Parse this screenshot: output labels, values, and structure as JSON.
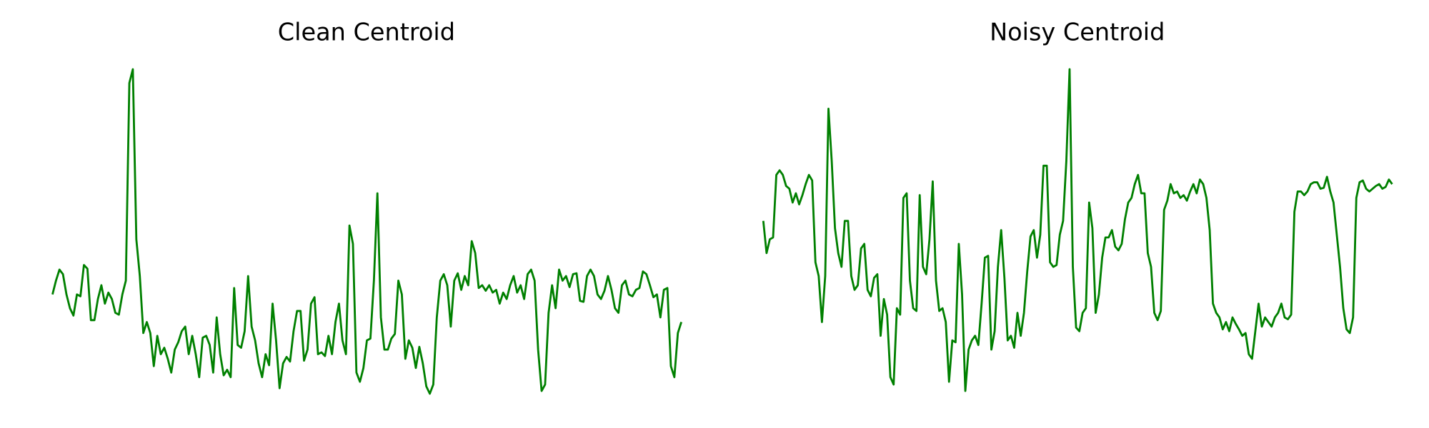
{
  "chart_data": [
    {
      "type": "line",
      "title": "Clean Centroid",
      "color": "#008000",
      "ylim": [
        0,
        355
      ],
      "values": [
        110,
        125,
        137,
        132,
        110,
        95,
        87,
        110,
        108,
        142,
        138,
        82,
        82,
        105,
        120,
        100,
        112,
        105,
        90,
        88,
        110,
        125,
        340,
        355,
        170,
        130,
        68,
        80,
        68,
        32,
        65,
        45,
        52,
        40,
        25,
        50,
        58,
        70,
        75,
        45,
        65,
        45,
        20,
        63,
        65,
        55,
        25,
        85,
        45,
        22,
        28,
        20,
        117,
        55,
        52,
        70,
        130,
        75,
        60,
        35,
        20,
        45,
        33,
        100,
        60,
        8,
        35,
        42,
        37,
        70,
        92,
        92,
        38,
        50,
        100,
        107,
        45,
        47,
        43,
        65,
        45,
        80,
        100,
        60,
        45,
        185,
        165,
        25,
        15,
        30,
        60,
        62,
        125,
        220,
        85,
        50,
        50,
        62,
        67,
        125,
        110,
        40,
        60,
        52,
        30,
        53,
        35,
        10,
        2,
        12,
        85,
        125,
        132,
        120,
        75,
        125,
        133,
        115,
        130,
        120,
        168,
        155,
        117,
        120,
        114,
        120,
        112,
        115,
        100,
        112,
        105,
        120,
        130,
        112,
        120,
        105,
        132,
        137,
        125,
        50,
        5,
        12,
        90,
        120,
        95,
        137,
        125,
        130,
        118,
        132,
        133,
        103,
        102,
        130,
        137,
        130,
        110,
        105,
        114,
        130,
        115,
        95,
        90,
        120,
        125,
        110,
        108,
        115,
        117,
        135,
        132,
        120,
        107,
        110,
        85,
        115,
        117,
        32,
        20,
        68,
        80
      ]
    },
    {
      "type": "line",
      "title": "Noisy Centroid",
      "color": "#008000",
      "ylim": [
        0,
        355
      ],
      "values": [
        190,
        155,
        170,
        172,
        240,
        245,
        240,
        228,
        225,
        210,
        220,
        208,
        218,
        230,
        240,
        234,
        145,
        130,
        80,
        130,
        312,
        255,
        182,
        155,
        140,
        190,
        190,
        130,
        115,
        120,
        160,
        165,
        115,
        108,
        128,
        132,
        65,
        105,
        88,
        20,
        12,
        95,
        88,
        215,
        220,
        125,
        95,
        92,
        218,
        140,
        132,
        170,
        233,
        125,
        92,
        95,
        80,
        15,
        60,
        58,
        165,
        110,
        5,
        50,
        60,
        65,
        55,
        100,
        150,
        152,
        50,
        70,
        140,
        180,
        128,
        60,
        65,
        52,
        90,
        65,
        90,
        135,
        173,
        180,
        150,
        175,
        250,
        250,
        145,
        140,
        142,
        175,
        190,
        255,
        355,
        140,
        74,
        70,
        90,
        95,
        210,
        182,
        90,
        110,
        150,
        172,
        172,
        180,
        162,
        158,
        165,
        192,
        210,
        215,
        230,
        240,
        220,
        220,
        155,
        140,
        90,
        82,
        92,
        202,
        212,
        230,
        220,
        222,
        215,
        218,
        212,
        222,
        230,
        220,
        235,
        230,
        215,
        180,
        100,
        90,
        85,
        72,
        80,
        70,
        85,
        78,
        72,
        65,
        68,
        45,
        40,
        70,
        100,
        75,
        85,
        80,
        75,
        85,
        90,
        100,
        85,
        83,
        88,
        200,
        222,
        222,
        218,
        222,
        230,
        232,
        232,
        225,
        226,
        238,
        222,
        210,
        175,
        140,
        95,
        72,
        68,
        85,
        215,
        232,
        234,
        225,
        222,
        225,
        228,
        230,
        225,
        227,
        235,
        230
      ]
    }
  ]
}
